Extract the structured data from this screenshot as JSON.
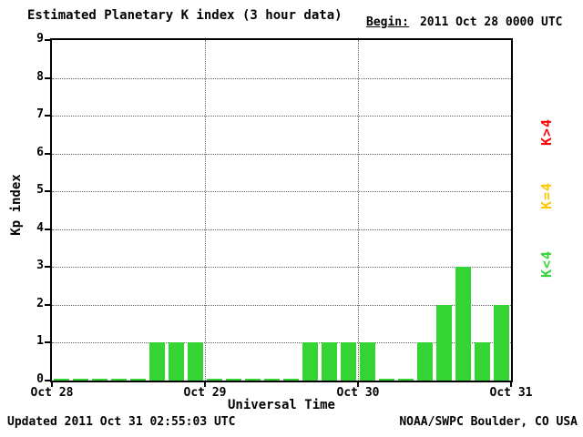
{
  "title": "Estimated Planetary K index (3 hour data)",
  "begin_label": "Begin:",
  "begin_value": "2011 Oct 28 0000 UTC",
  "footer": {
    "updated": "Updated 2011 Oct 31 02:55:03 UTC",
    "source": "NOAA/SWPC Boulder, CO USA"
  },
  "chart_data": {
    "type": "bar",
    "title": "Estimated Planetary K index (3 hour data)",
    "xlabel": "Universal Time",
    "ylabel": "Kp index",
    "ylim": [
      0,
      9
    ],
    "yticks": [
      0,
      1,
      2,
      3,
      4,
      5,
      6,
      7,
      8,
      9
    ],
    "xticks": [
      "Oct 28",
      "Oct 29",
      "Oct 30",
      "Oct 31"
    ],
    "grid": true,
    "bar_color": "#35d435",
    "categories": [
      "Oct 28 0000",
      "Oct 28 0300",
      "Oct 28 0600",
      "Oct 28 0900",
      "Oct 28 1200",
      "Oct 28 1500",
      "Oct 28 1800",
      "Oct 28 2100",
      "Oct 29 0000",
      "Oct 29 0300",
      "Oct 29 0600",
      "Oct 29 0900",
      "Oct 29 1200",
      "Oct 29 1500",
      "Oct 29 1800",
      "Oct 29 2100",
      "Oct 30 0000",
      "Oct 30 0300",
      "Oct 30 0600",
      "Oct 30 0900",
      "Oct 30 1200",
      "Oct 30 1500",
      "Oct 30 1800",
      "Oct 30 2100"
    ],
    "values": [
      0,
      0,
      0,
      0,
      0,
      1,
      1,
      1,
      0,
      0,
      0,
      0,
      0,
      1,
      1,
      1,
      1,
      0,
      0,
      1,
      2,
      3,
      1,
      2
    ],
    "legend": [
      {
        "label": "K>4",
        "color": "#ff0000"
      },
      {
        "label": "K=4",
        "color": "#ffc800"
      },
      {
        "label": "K<4",
        "color": "#35d435"
      }
    ],
    "legend_position": "right"
  }
}
